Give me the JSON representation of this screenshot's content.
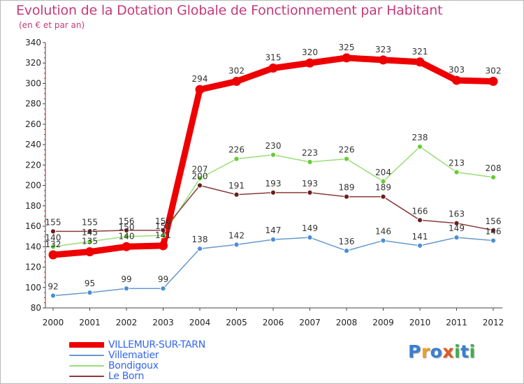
{
  "title": "Evolution de la Dotation Globale de Fonctionnement par Habitant",
  "subtitle": "(en € et par an)",
  "logo": {
    "text": "Proxiti",
    "colors": [
      "#3a7fd0",
      "#f0a020",
      "#3a7fd0",
      "#e05a20",
      "#3fb04a",
      "#3a7fd0",
      "#3fb04a"
    ]
  },
  "chart_data": {
    "type": "line",
    "title": "Evolution de la Dotation Globale de Fonctionnement par Habitant",
    "subtitle": "(en € et par an)",
    "xlabel": "",
    "ylabel": "",
    "x": [
      2000,
      2001,
      2002,
      2003,
      2004,
      2005,
      2006,
      2007,
      2008,
      2009,
      2010,
      2011,
      2012
    ],
    "x_tick_labels": [
      "2000",
      "2001",
      "2002",
      "2003",
      "2004",
      "2005",
      "2006",
      "2007",
      "2008",
      "2009",
      "2010",
      "2011",
      "2012"
    ],
    "ylim": [
      80,
      340
    ],
    "y_ticks": [
      80,
      100,
      120,
      140,
      160,
      180,
      200,
      220,
      240,
      260,
      280,
      300,
      320,
      340
    ],
    "grid": false,
    "legend_position": "bottom-left",
    "series": [
      {
        "name": "VILLEMUR-SUR-TARN",
        "color": "#ee0000",
        "point_color": "#ee0000",
        "label_color": "#333333",
        "emphasis": true,
        "values": [
          132,
          135,
          140,
          141,
          294,
          302,
          315,
          320,
          325,
          323,
          321,
          303,
          302
        ]
      },
      {
        "name": "Villematier",
        "color": "#6699cc",
        "point_color": "#4a8fd8",
        "label_color": "#333333",
        "emphasis": false,
        "values": [
          92,
          95,
          99,
          99,
          138,
          142,
          147,
          149,
          136,
          146,
          141,
          149,
          146
        ]
      },
      {
        "name": "Bondigoux",
        "color": "#99dd77",
        "point_color": "#66cc33",
        "label_color": "#333333",
        "emphasis": false,
        "values": [
          140,
          145,
          150,
          151,
          207,
          226,
          230,
          223,
          226,
          204,
          238,
          213,
          208
        ]
      },
      {
        "name": "Le Born",
        "color": "#8b3a3a",
        "point_color": "#6b1f1f",
        "label_color": "#333333",
        "emphasis": false,
        "values": [
          155,
          155,
          156,
          156,
          200,
          191,
          193,
          193,
          189,
          189,
          166,
          163,
          156
        ]
      }
    ],
    "legend_label_colors": [
      "#3366ee",
      "#3366ee",
      "#3366ee",
      "#3366ee"
    ]
  }
}
